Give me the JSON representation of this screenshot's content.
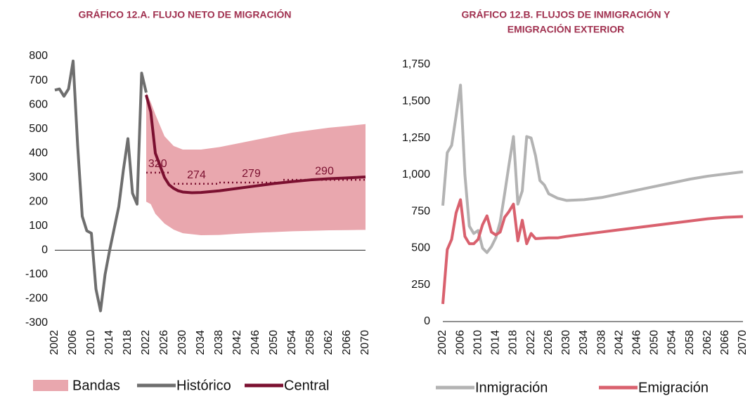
{
  "chart_data": [
    {
      "type": "line",
      "title": [
        "GRÁFICO 12.A. FLUJO NETO DE MIGRACIÓN"
      ],
      "xlim": [
        2002,
        2070
      ],
      "xticks": [
        2002,
        2006,
        2010,
        2014,
        2018,
        2022,
        2026,
        2030,
        2034,
        2038,
        2042,
        2046,
        2050,
        2054,
        2058,
        2062,
        2066,
        2070
      ],
      "ylim": [
        -300,
        800
      ],
      "yticks": [
        -300,
        -200,
        -100,
        0,
        100,
        200,
        300,
        400,
        500,
        600,
        700,
        800
      ],
      "zero_line": true,
      "series": [
        {
          "name": "Bandas",
          "style": "band",
          "color": "#e9a7ae",
          "x": [
            2022,
            2023,
            2024,
            2026,
            2028,
            2030,
            2034,
            2038,
            2042,
            2046,
            2050,
            2054,
            2058,
            2062,
            2066,
            2070
          ],
          "upper": [
            650,
            610,
            560,
            470,
            430,
            415,
            415,
            425,
            440,
            455,
            470,
            485,
            495,
            505,
            512,
            520
          ],
          "lower": [
            200,
            190,
            150,
            110,
            85,
            70,
            62,
            63,
            68,
            72,
            75,
            78,
            80,
            82,
            83,
            84
          ]
        },
        {
          "name": "Histórico",
          "style": "line",
          "color": "#6e6e6e",
          "x": [
            2002,
            2003,
            2004,
            2005,
            2006,
            2007,
            2008,
            2009,
            2010,
            2011,
            2012,
            2013,
            2014,
            2015,
            2016,
            2017,
            2018,
            2019,
            2020,
            2021,
            2022
          ],
          "values": [
            660,
            665,
            635,
            665,
            780,
            430,
            140,
            80,
            70,
            -160,
            -250,
            -100,
            0,
            90,
            180,
            330,
            460,
            235,
            190,
            730,
            650
          ]
        },
        {
          "name": "Central",
          "style": "line",
          "color": "#7b1030",
          "x": [
            2022,
            2023,
            2024,
            2025,
            2026,
            2027,
            2028,
            2029,
            2030,
            2032,
            2034,
            2038,
            2042,
            2046,
            2050,
            2054,
            2058,
            2062,
            2066,
            2070
          ],
          "values": [
            640,
            570,
            400,
            350,
            300,
            270,
            255,
            245,
            240,
            237,
            238,
            245,
            255,
            265,
            275,
            283,
            290,
            295,
            298,
            302
          ]
        }
      ],
      "reference_levels": [
        {
          "x_start": 2022,
          "x_end": 2027,
          "value": 320
        },
        {
          "x_start": 2028,
          "x_end": 2038,
          "value": 274
        },
        {
          "x_start": 2038,
          "x_end": 2052,
          "value": 279
        },
        {
          "x_start": 2052,
          "x_end": 2070,
          "value": 290
        }
      ],
      "reference_color": "#7b1030"
    },
    {
      "type": "line",
      "title": [
        "GRÁFICO 12.B. FLUJOS DE INMIGRACIÓN Y",
        "EMIGRACIÓN EXTERIOR"
      ],
      "xlim": [
        2002,
        2070
      ],
      "xticks": [
        2002,
        2006,
        2010,
        2014,
        2018,
        2022,
        2026,
        2030,
        2034,
        2038,
        2042,
        2046,
        2050,
        2054,
        2058,
        2062,
        2066,
        2070
      ],
      "ylim": [
        0,
        1750
      ],
      "yticks": [
        0,
        250,
        500,
        750,
        {
          "value": 1000,
          "label": "1,000"
        },
        {
          "value": 1250,
          "label": "1,250"
        },
        {
          "value": 1500,
          "label": "1,500"
        },
        {
          "value": 1750,
          "label": "1,750"
        }
      ],
      "zero_line": true,
      "series": [
        {
          "name": "Inmigración",
          "style": "line",
          "color": "#b3b3b3",
          "x": [
            2002,
            2003,
            2004,
            2005,
            2006,
            2007,
            2008,
            2009,
            2010,
            2011,
            2012,
            2013,
            2014,
            2015,
            2016,
            2017,
            2018,
            2019,
            2020,
            2021,
            2022,
            2023,
            2024,
            2025,
            2026,
            2028,
            2030,
            2034,
            2038,
            2042,
            2046,
            2050,
            2054,
            2058,
            2062,
            2066,
            2070
          ],
          "values": [
            790,
            1150,
            1200,
            1400,
            1610,
            1000,
            650,
            600,
            620,
            500,
            470,
            510,
            570,
            680,
            870,
            1070,
            1260,
            800,
            890,
            1260,
            1250,
            1130,
            960,
            930,
            870,
            840,
            825,
            830,
            845,
            870,
            895,
            920,
            945,
            970,
            990,
            1005,
            1020
          ]
        },
        {
          "name": "Emigración",
          "style": "line",
          "color": "#d9616e",
          "x": [
            2002,
            2003,
            2004,
            2005,
            2006,
            2007,
            2008,
            2009,
            2010,
            2011,
            2012,
            2013,
            2014,
            2015,
            2016,
            2017,
            2018,
            2019,
            2020,
            2021,
            2022,
            2023,
            2026,
            2028,
            2030,
            2034,
            2038,
            2042,
            2046,
            2050,
            2054,
            2058,
            2062,
            2066,
            2070
          ],
          "values": [
            120,
            490,
            560,
            740,
            830,
            580,
            530,
            530,
            560,
            660,
            720,
            610,
            590,
            610,
            710,
            750,
            800,
            550,
            690,
            530,
            600,
            565,
            570,
            570,
            580,
            595,
            610,
            625,
            640,
            655,
            670,
            685,
            700,
            710,
            715
          ]
        }
      ]
    }
  ]
}
